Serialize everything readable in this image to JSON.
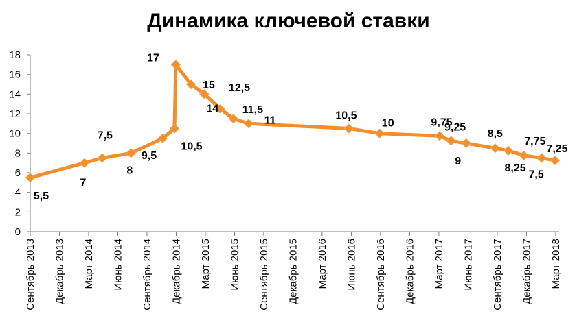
{
  "chart_data": {
    "type": "line",
    "title": "Динамика ключевой ставки",
    "xlabel": "",
    "ylabel": "",
    "ylim": [
      0,
      18
    ],
    "yticks": [
      0,
      2,
      4,
      6,
      8,
      10,
      12,
      14,
      16,
      18
    ],
    "grid": false,
    "legend": "none",
    "x_ticks": [
      "Сентябрь 2013",
      "Декабрь 2013",
      "Март 2014",
      "Июнь 2014",
      "Сентябрь 2014",
      "Декабрь 2014",
      "Март 2015",
      "Июнь 2015",
      "Сентябрь 2015",
      "Декабрь 2015",
      "Март 2016",
      "Июнь 2016",
      "Сентябрь 2016",
      "Декабрь 2016",
      "Март 2017",
      "Июнь 2017",
      "Сентябрь 2017",
      "Декабрь 2017",
      "Март 2018"
    ],
    "series": [
      {
        "color": "#f28e2b",
        "points": [
          {
            "x": "2013-09-13",
            "y": 5.5,
            "label": "5,5"
          },
          {
            "x": "2014-03-03",
            "y": 7,
            "label": "7"
          },
          {
            "x": "2014-04-28",
            "y": 7.5,
            "label": "7,5"
          },
          {
            "x": "2014-07-28",
            "y": 8,
            "label": "8"
          },
          {
            "x": "2014-11-05",
            "y": 9.5,
            "label": "9,5"
          },
          {
            "x": "2014-12-12",
            "y": 10.5,
            "label": "10,5"
          },
          {
            "x": "2014-12-16",
            "y": 17,
            "label": "17"
          },
          {
            "x": "2015-02-02",
            "y": 15,
            "label": "15"
          },
          {
            "x": "2015-03-16",
            "y": 14,
            "label": "14"
          },
          {
            "x": "2015-05-05",
            "y": 12.5,
            "label": "12,5"
          },
          {
            "x": "2015-06-16",
            "y": 11.5,
            "label": "11,5"
          },
          {
            "x": "2015-08-03",
            "y": 11,
            "label": "11"
          },
          {
            "x": "2016-06-14",
            "y": 10.5,
            "label": "10,5"
          },
          {
            "x": "2016-09-19",
            "y": 10,
            "label": "10"
          },
          {
            "x": "2017-03-27",
            "y": 9.75,
            "label": "9,75"
          },
          {
            "x": "2017-05-02",
            "y": 9.25,
            "label": "9,25"
          },
          {
            "x": "2017-06-19",
            "y": 9,
            "label": "9"
          },
          {
            "x": "2017-09-18",
            "y": 8.5,
            "label": "8,5"
          },
          {
            "x": "2017-10-30",
            "y": 8.25,
            "label": "8,25"
          },
          {
            "x": "2017-12-18",
            "y": 7.75,
            "label": "7,75"
          },
          {
            "x": "2018-02-12",
            "y": 7.5,
            "label": "7,5"
          },
          {
            "x": "2018-03-26",
            "y": 7.25,
            "label": "7,25"
          }
        ]
      }
    ]
  }
}
